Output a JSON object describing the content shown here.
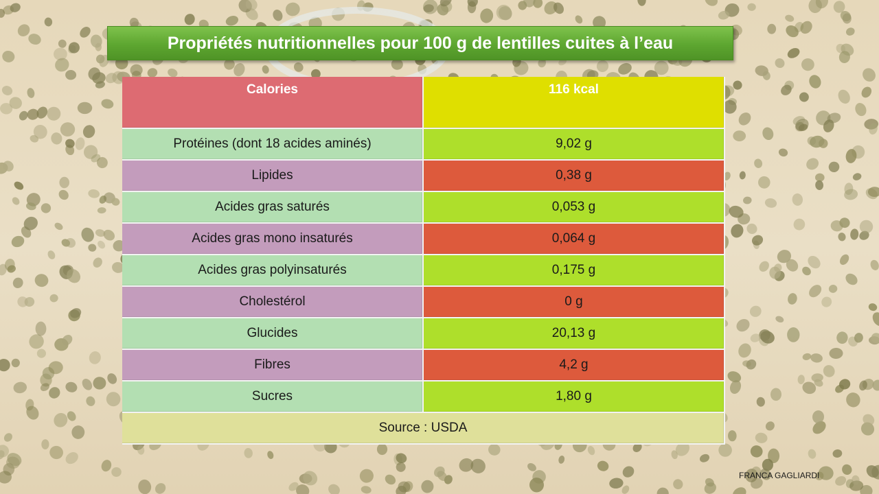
{
  "slide": {
    "title": "Propriétés nutritionnelles pour 100 g de lentilles cuites à l’eau",
    "credit": "FRANCA GAGLIARDI"
  },
  "table": {
    "header": {
      "name": "Calories",
      "value": "116 kcal"
    },
    "rows": [
      {
        "name": "Protéines (dont 18 acides aminés)",
        "value": "9,02 g"
      },
      {
        "name": "Lipides",
        "value": "0,38 g"
      },
      {
        "name": "Acides gras saturés",
        "value": "0,053 g"
      },
      {
        "name": "Acides gras mono insaturés",
        "value": "0,064 g"
      },
      {
        "name": "Acides gras polyinsaturés",
        "value": "0,175 g"
      },
      {
        "name": "Cholestérol",
        "value": "0 g"
      },
      {
        "name": "Glucides",
        "value": "20,13 g"
      },
      {
        "name": "Fibres",
        "value": "4,2 g"
      },
      {
        "name": "Sucres",
        "value": "1,80 g"
      }
    ],
    "source": "Source : USDA"
  },
  "colors": {
    "title_banner": "#5da630",
    "header_name": "#dd6b72",
    "header_value": "#dfdf00",
    "row_name_green": "#b3dfb2",
    "row_name_purple": "#c39cbc",
    "row_value_green": "#aedf2b",
    "row_value_red": "#dd5a3c",
    "source_row": "#dfe09a"
  }
}
